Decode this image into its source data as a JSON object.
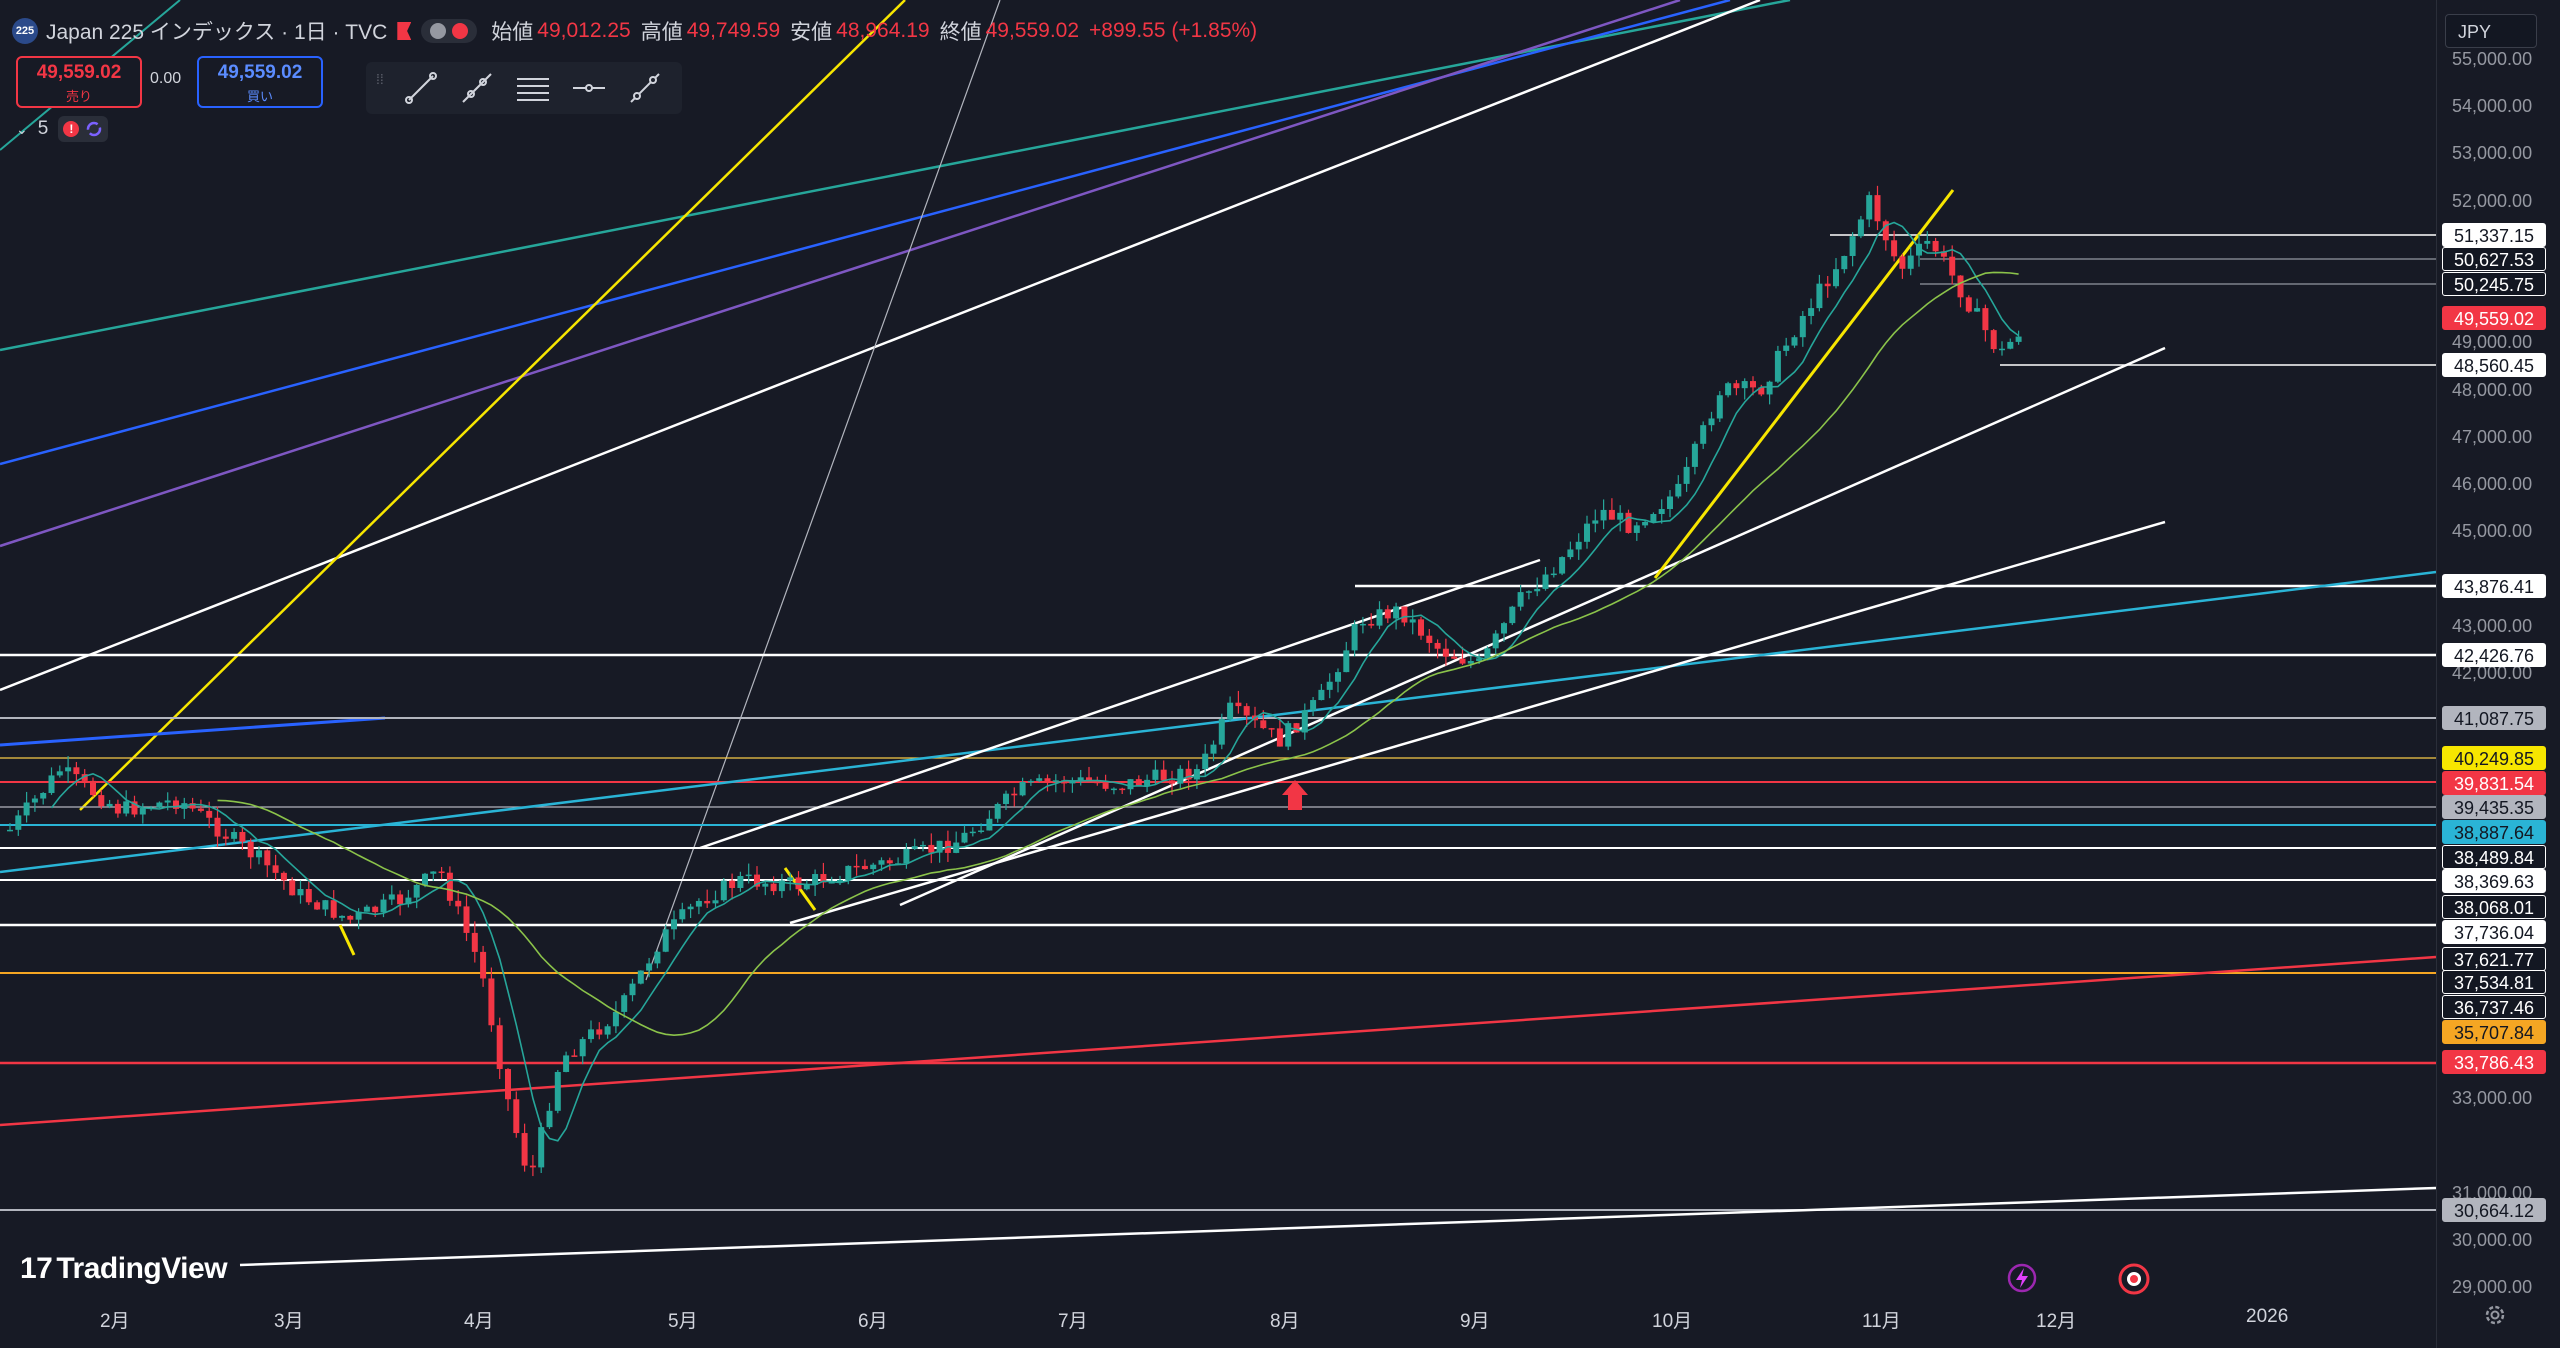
{
  "header": {
    "symbol_icon": "225",
    "title": "Japan 225 インデックス · 1日 · TVC",
    "ohlc": [
      {
        "key": "始値",
        "value": "49,012.25"
      },
      {
        "key": "高値",
        "value": "49,749.59"
      },
      {
        "key": "安値",
        "value": "48,964.19"
      },
      {
        "key": "終値",
        "value": "49,559.02"
      }
    ],
    "change": "+899.55 (+1.85%)"
  },
  "trade": {
    "sell_price": "49,559.02",
    "sell_label": "売り",
    "spread": "0.00",
    "buy_price": "49,559.02",
    "buy_label": "買い"
  },
  "indicators": {
    "count": "5",
    "warn": "!"
  },
  "currency": "JPY",
  "price_axis": {
    "ticks": [
      "55,000.00",
      "54,000.00",
      "53,000.00",
      "52,000.00",
      "49,000.00",
      "48,000.00",
      "47,000.00",
      "46,000.00",
      "45,000.00",
      "43,000.00",
      "42,000.00",
      "33,000.00",
      "31,000.00",
      "30,000.00",
      "29,000.00"
    ],
    "labels": [
      {
        "text": "51,337.15",
        "style": "white"
      },
      {
        "text": "50,627.53",
        "style": "dark"
      },
      {
        "text": "50,245.75",
        "style": "dark"
      },
      {
        "text": "49,559.02",
        "style": "red"
      },
      {
        "text": "48,560.45",
        "style": "white"
      },
      {
        "text": "43,876.41",
        "style": "white"
      },
      {
        "text": "42,426.76",
        "style": "white"
      },
      {
        "text": "41,087.75",
        "style": "grey"
      },
      {
        "text": "40,249.85",
        "style": "yellow"
      },
      {
        "text": "39,831.54",
        "style": "red"
      },
      {
        "text": "39,435.35",
        "style": "grey"
      },
      {
        "text": "38,887.64",
        "style": "cyan"
      },
      {
        "text": "38,489.84",
        "style": "dark"
      },
      {
        "text": "38,369.63",
        "style": "white"
      },
      {
        "text": "38,068.01",
        "style": "dark"
      },
      {
        "text": "37,736.04",
        "style": "white"
      },
      {
        "text": "37,621.77",
        "style": "dark"
      },
      {
        "text": "37,534.81",
        "style": "dark"
      },
      {
        "text": "36,737.46",
        "style": "dark"
      },
      {
        "text": "35,707.84",
        "style": "orange"
      },
      {
        "text": "33,786.43",
        "style": "red"
      },
      {
        "text": "30,664.12",
        "style": "grey"
      }
    ]
  },
  "time_axis": [
    "2月",
    "3月",
    "4月",
    "5月",
    "6月",
    "7月",
    "8月",
    "9月",
    "10月",
    "11月",
    "12月",
    "2026"
  ],
  "logo": "TradingView",
  "colors": {
    "background": "#171a25",
    "up": "#26a69a",
    "down": "#f23645",
    "ma": "#1e9c6b"
  }
}
